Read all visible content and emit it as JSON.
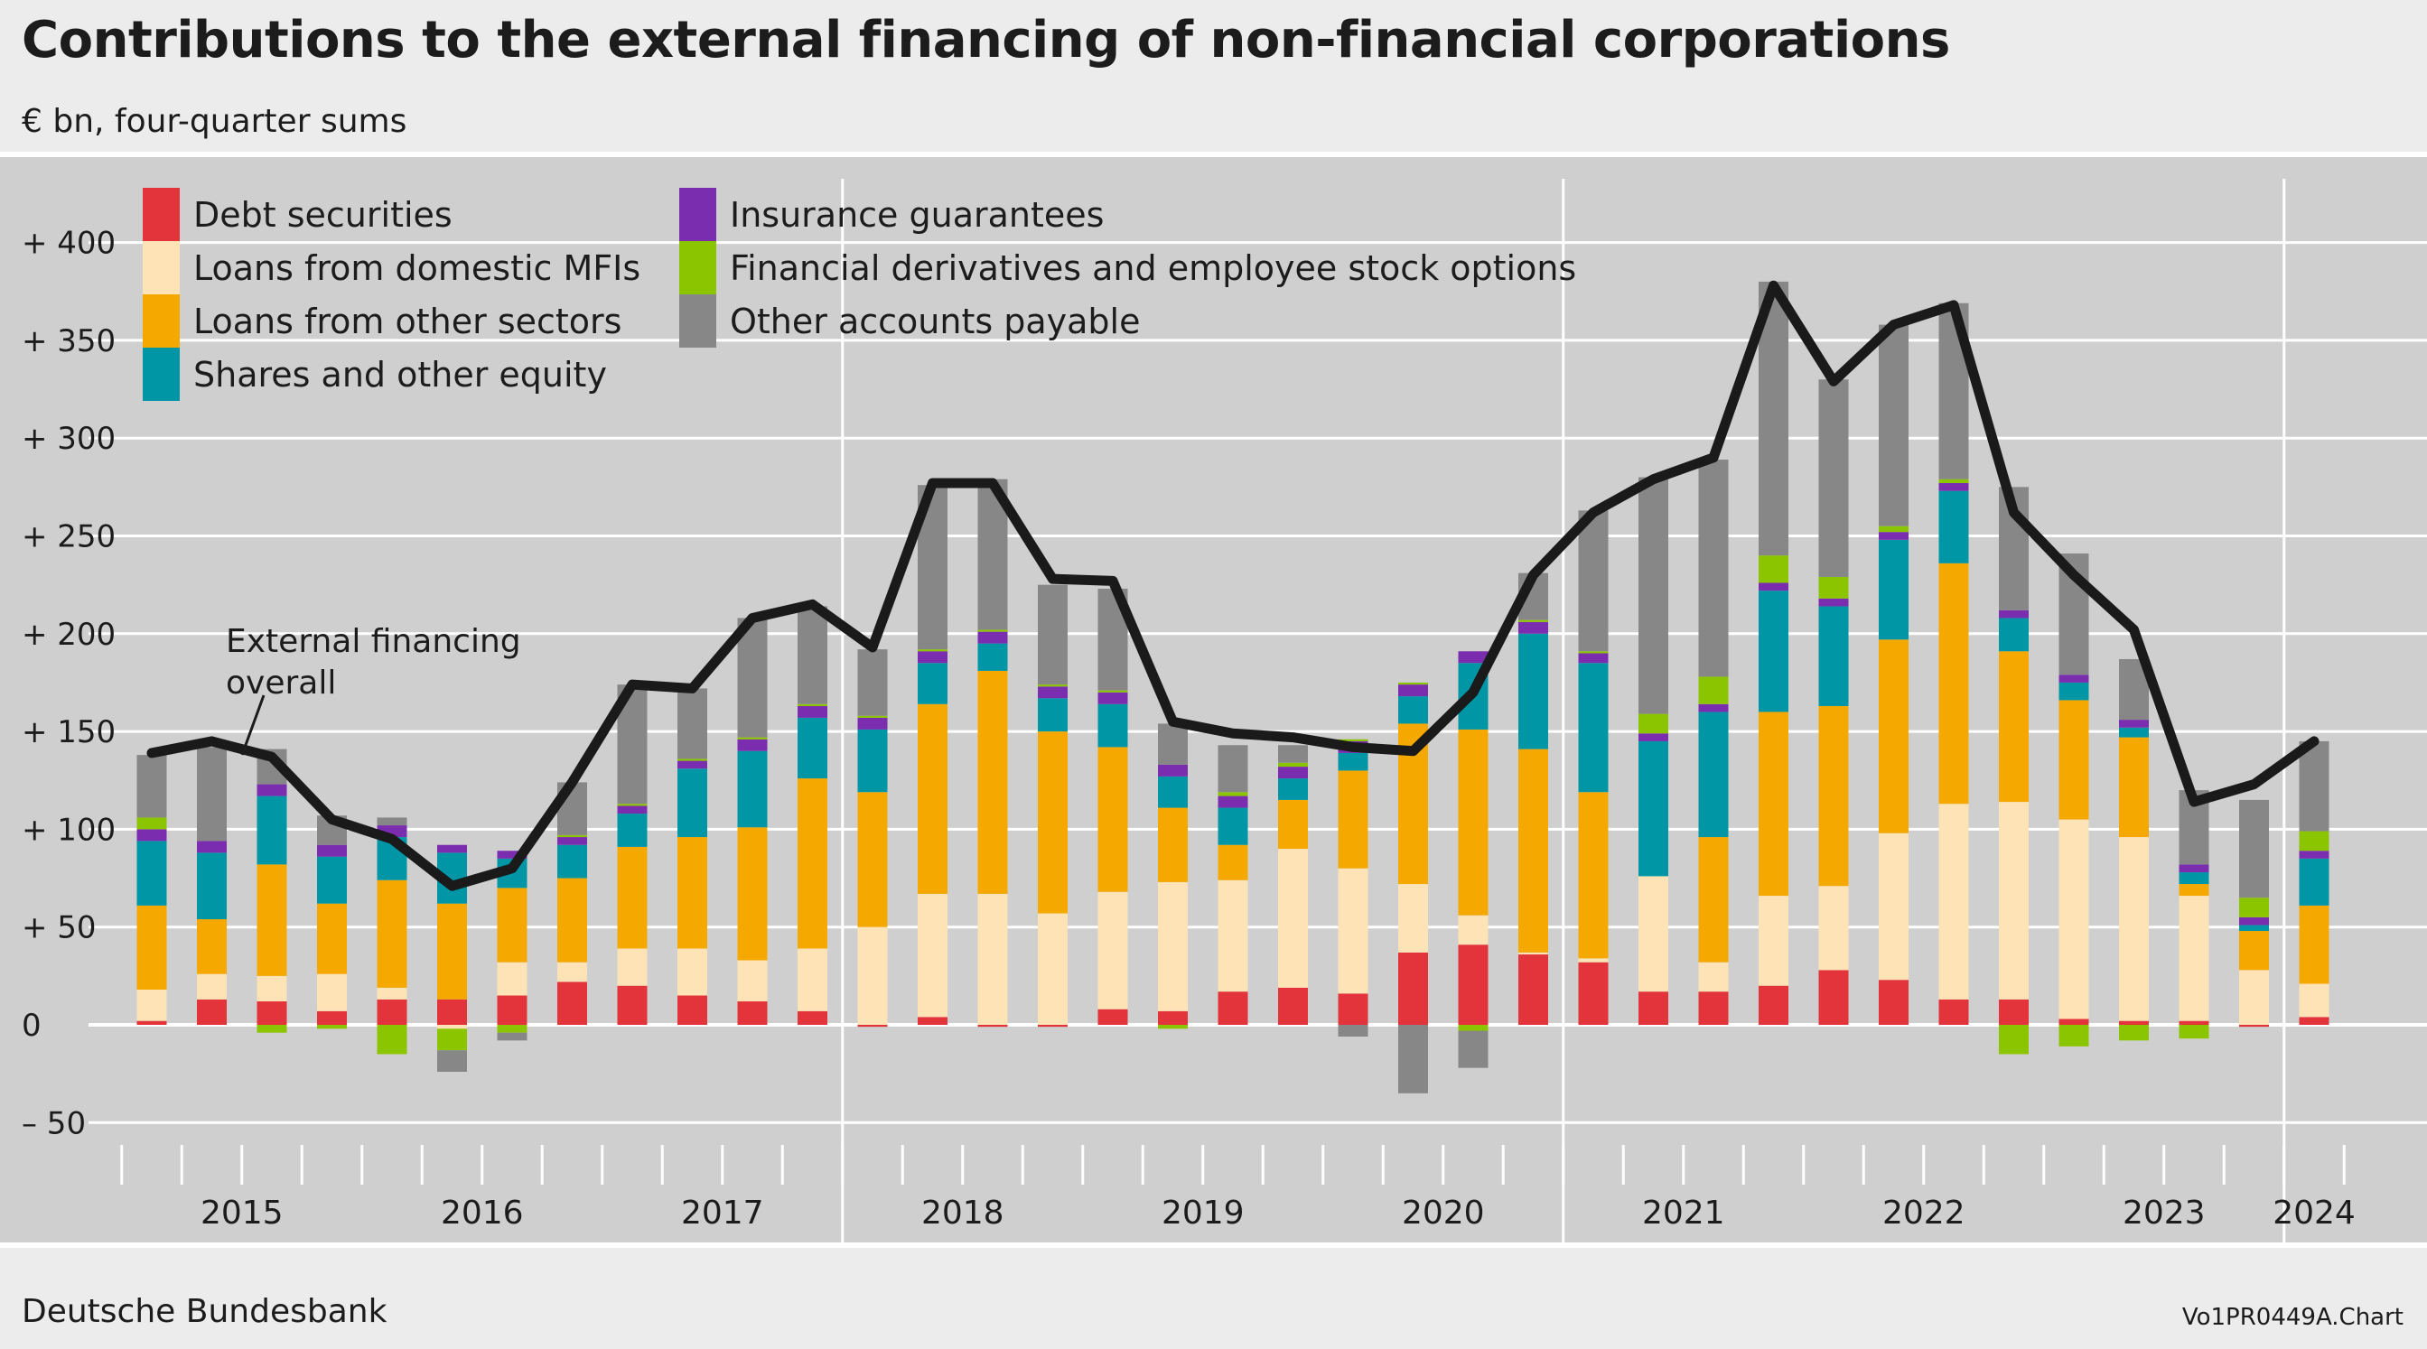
{
  "header": {
    "title": "Contributions to the external financing of non-financial corporations",
    "subtitle": "€ bn, four-quarter sums"
  },
  "footer": {
    "source": "Deutsche Bundesbank",
    "chart_id": "Vo1PR0449A.Chart"
  },
  "colors": {
    "panel_background": "#cfcfcf",
    "grid_line": "#ffffff",
    "total_line": "#1a1a1a"
  },
  "chart_data": {
    "type": "bar",
    "stacked": true,
    "unit": "€ bn, four-quarter sums",
    "ylim": [
      -65,
      435
    ],
    "y_ticks": [
      -50,
      0,
      50,
      100,
      150,
      200,
      250,
      300,
      350,
      400
    ],
    "y_tick_labels": [
      "–  50",
      "0",
      "+  50",
      "+ 100",
      "+ 150",
      "+ 200",
      "+ 250",
      "+ 300",
      "+ 350",
      "+ 400"
    ],
    "grid": true,
    "legend_position": "top-left",
    "x_quarters": [
      "2015 Q1",
      "2015 Q2",
      "2015 Q3",
      "2015 Q4",
      "2016 Q1",
      "2016 Q2",
      "2016 Q3",
      "2016 Q4",
      "2017 Q1",
      "2017 Q2",
      "2017 Q3",
      "2017 Q4",
      "2018 Q1",
      "2018 Q2",
      "2018 Q3",
      "2018 Q4",
      "2019 Q1",
      "2019 Q2",
      "2019 Q3",
      "2019 Q4",
      "2020 Q1",
      "2020 Q2",
      "2020 Q3",
      "2020 Q4",
      "2021 Q1",
      "2021 Q2",
      "2021 Q3",
      "2021 Q4",
      "2022 Q1",
      "2022 Q2",
      "2022 Q3",
      "2022 Q4",
      "2023 Q1",
      "2023 Q2",
      "2023 Q3",
      "2023 Q4",
      "2024 Q1"
    ],
    "year_labels": [
      {
        "label": "2015",
        "first_quarter": 0,
        "count": 4
      },
      {
        "label": "2016",
        "first_quarter": 4,
        "count": 4
      },
      {
        "label": "2017",
        "first_quarter": 8,
        "count": 4
      },
      {
        "label": "2018",
        "first_quarter": 12,
        "count": 4
      },
      {
        "label": "2019",
        "first_quarter": 16,
        "count": 4
      },
      {
        "label": "2020",
        "first_quarter": 20,
        "count": 4
      },
      {
        "label": "2021",
        "first_quarter": 24,
        "count": 4
      },
      {
        "label": "2022",
        "first_quarter": 28,
        "count": 4
      },
      {
        "label": "2023",
        "first_quarter": 32,
        "count": 4
      },
      {
        "label": "2024",
        "first_quarter": 36,
        "count": 1
      }
    ],
    "series": [
      {
        "name": "Debt securities",
        "color": "#e3343b",
        "values": [
          2,
          13,
          12,
          7,
          13,
          13,
          15,
          22,
          20,
          15,
          12,
          7,
          -1,
          4,
          -1,
          -1,
          8,
          7,
          17,
          19,
          16,
          37,
          41,
          36,
          32,
          17,
          17,
          20,
          28,
          23,
          13,
          13,
          3,
          2,
          2,
          -1,
          4
        ]
      },
      {
        "name": "Loans from domestic MFIs",
        "color": "#fde3b6",
        "values": [
          16,
          13,
          13,
          19,
          6,
          -2,
          17,
          10,
          19,
          24,
          21,
          32,
          50,
          63,
          67,
          57,
          60,
          66,
          57,
          71,
          64,
          35,
          15,
          1,
          2,
          59,
          15,
          46,
          43,
          75,
          100,
          101,
          102,
          94,
          64,
          28,
          17
        ]
      },
      {
        "name": "Loans from other sectors",
        "color": "#f4a800",
        "values": [
          43,
          28,
          57,
          36,
          55,
          49,
          38,
          43,
          52,
          57,
          68,
          87,
          69,
          97,
          114,
          93,
          74,
          38,
          18,
          25,
          50,
          82,
          95,
          104,
          85,
          0,
          64,
          94,
          92,
          99,
          123,
          77,
          61,
          51,
          6,
          20,
          40
        ]
      },
      {
        "name": "Shares and other equity",
        "color": "#0096a6",
        "values": [
          33,
          34,
          35,
          24,
          22,
          26,
          15,
          17,
          17,
          35,
          39,
          31,
          32,
          21,
          14,
          17,
          22,
          16,
          19,
          11,
          9,
          14,
          34,
          59,
          66,
          69,
          64,
          62,
          51,
          51,
          37,
          17,
          9,
          5,
          6,
          3,
          24
        ]
      },
      {
        "name": "Insurance guarantees",
        "color": "#7b2db0",
        "values": [
          6,
          6,
          6,
          6,
          6,
          4,
          4,
          4,
          4,
          4,
          6,
          6,
          6,
          6,
          6,
          6,
          6,
          6,
          6,
          6,
          6,
          6,
          6,
          6,
          5,
          4,
          4,
          4,
          4,
          4,
          4,
          4,
          4,
          4,
          4,
          4,
          4
        ]
      },
      {
        "name": "Financial derivatives and employee stock options",
        "color": "#8bc500",
        "values": [
          6,
          0,
          -4,
          -2,
          -15,
          -11,
          -4,
          1,
          1,
          1,
          1,
          1,
          1,
          1,
          1,
          1,
          1,
          -2,
          2,
          2,
          1,
          1,
          -3,
          1,
          1,
          10,
          14,
          14,
          11,
          3,
          2,
          -15,
          -11,
          -8,
          -7,
          10,
          10
        ]
      },
      {
        "name": "Other accounts payable",
        "color": "#878787",
        "values": [
          32,
          48,
          18,
          15,
          4,
          -11,
          -4,
          27,
          61,
          36,
          61,
          50,
          34,
          84,
          77,
          51,
          52,
          21,
          24,
          9,
          -6,
          -35,
          -19,
          24,
          72,
          121,
          111,
          140,
          101,
          103,
          90,
          63,
          62,
          31,
          38,
          50,
          46
        ]
      }
    ],
    "total_series": {
      "name": "External financing overall",
      "values": [
        139,
        145,
        137,
        105,
        95,
        71,
        80,
        124,
        174,
        172,
        208,
        215,
        193,
        277,
        277,
        228,
        227,
        155,
        149,
        147,
        142,
        140,
        170,
        230,
        262,
        279,
        290,
        378,
        329,
        358,
        368,
        262,
        230,
        202,
        114,
        123,
        145
      ]
    },
    "annotation": {
      "text_lines": [
        "External financing",
        "overall"
      ]
    }
  }
}
